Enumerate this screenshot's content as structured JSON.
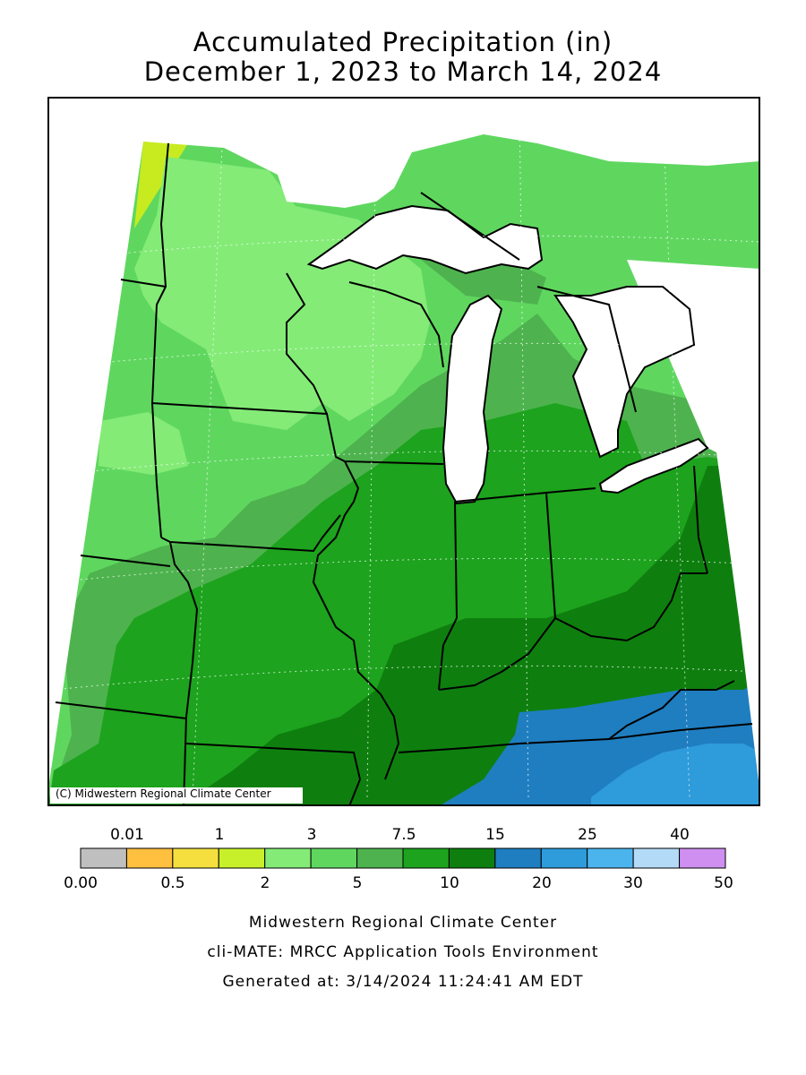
{
  "title": {
    "line1": "Accumulated Precipitation (in)",
    "line2": "December 1, 2023 to March 14, 2024"
  },
  "map": {
    "copyright": "(C) Midwestern Regional Climate Center",
    "palette": {
      "background_zone": "#ffffff",
      "lake": "#ffffff",
      "border": "#000000"
    },
    "regions": [
      {
        "name": "north-dakota-minnesota-zone",
        "range": "3-5",
        "color": "#5fd75f"
      },
      {
        "name": "northwest-corner-zone",
        "range": "1-2",
        "color": "#c8eb20"
      },
      {
        "name": "light-green-zone",
        "range": "2-3",
        "color": "#84eb77"
      },
      {
        "name": "medium-green-zone",
        "range": "5-7.5",
        "color": "#4eb34e"
      },
      {
        "name": "green-zone",
        "range": "7.5-10",
        "color": "#1da31d"
      },
      {
        "name": "dark-green-zone",
        "range": "10-15",
        "color": "#0e7f0e"
      },
      {
        "name": "blue-zone",
        "range": "15-20",
        "color": "#1f7ec0"
      },
      {
        "name": "light-blue-zone",
        "range": "20-25",
        "color": "#2e9bdb"
      }
    ]
  },
  "legend": {
    "top_labels": [
      "0.01",
      "1",
      "3",
      "7.5",
      "15",
      "25",
      "40"
    ],
    "bottom_labels": [
      "0.00",
      "0.5",
      "2",
      "5",
      "10",
      "20",
      "30",
      "50"
    ],
    "colors": [
      "#bfbfbf",
      "#ffbf3f",
      "#f4df3f",
      "#c8f02a",
      "#84eb77",
      "#5fd75f",
      "#4eb34e",
      "#1da31d",
      "#0e7f0e",
      "#1f7ec0",
      "#2e9bdb",
      "#4cb4ec",
      "#b3daf7",
      "#cf8ff0"
    ]
  },
  "credits": {
    "line1": "Midwestern Regional Climate Center",
    "line2": "cli-MATE: MRCC Application Tools Environment",
    "line3": "Generated at: 3/14/2024 11:24:41 AM EDT"
  }
}
